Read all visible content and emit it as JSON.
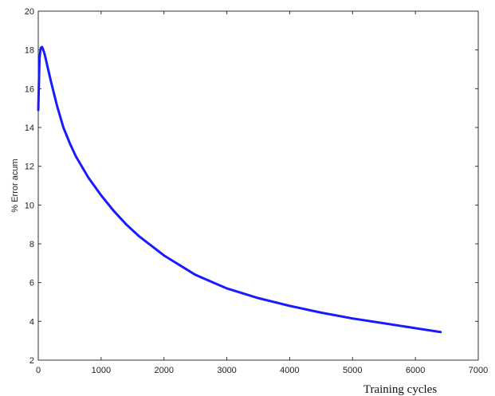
{
  "chart_data": {
    "type": "line",
    "title": "",
    "xlabel": "Training cycles",
    "ylabel": "%   Error acum",
    "xlim": [
      0,
      7000
    ],
    "ylim": [
      2,
      20
    ],
    "xticks": [
      0,
      1000,
      2000,
      3000,
      4000,
      5000,
      6000,
      7000
    ],
    "yticks": [
      2,
      4,
      6,
      8,
      10,
      12,
      14,
      16,
      18,
      20
    ],
    "grid": false,
    "legend": "none",
    "series": [
      {
        "color": "#1a1aff",
        "x": [
          0,
          20,
          40,
          60,
          80,
          100,
          150,
          200,
          300,
          400,
          500,
          600,
          800,
          1000,
          1200,
          1400,
          1600,
          1800,
          2000,
          2500,
          3000,
          3500,
          4000,
          4500,
          5000,
          5500,
          6000,
          6400
        ],
        "y": [
          14.9,
          17.6,
          18.1,
          18.15,
          18.0,
          17.8,
          17.1,
          16.4,
          15.1,
          14.0,
          13.2,
          12.5,
          11.4,
          10.5,
          9.7,
          9.0,
          8.4,
          7.9,
          7.4,
          6.4,
          5.7,
          5.2,
          4.8,
          4.45,
          4.15,
          3.9,
          3.65,
          3.45
        ]
      }
    ]
  }
}
